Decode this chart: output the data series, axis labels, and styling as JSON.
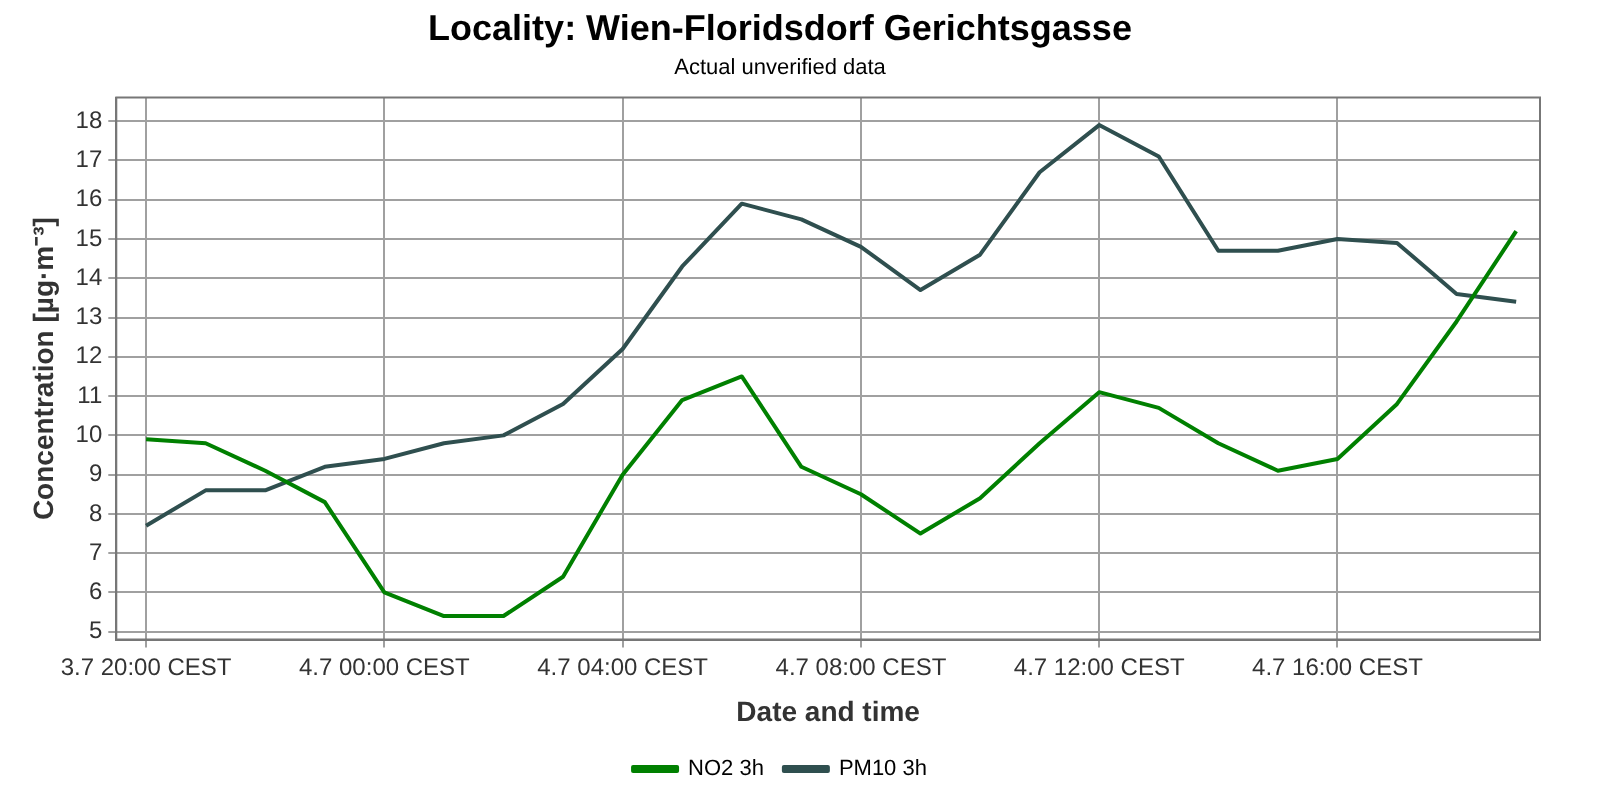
{
  "chart_data": {
    "type": "line",
    "title": "Locality: Wien-Floridsdorf Gerichtsgasse",
    "subtitle": "Actual unverified data",
    "xlabel": "Date and time",
    "ylabel": "Concentration [µg·m⁻³]",
    "categories": [
      "3.7 20:00 CEST",
      null,
      null,
      null,
      "4.7 00:00 CEST",
      null,
      null,
      null,
      "4.7 04:00 CEST",
      null,
      null,
      null,
      "4.7 08:00 CEST",
      null,
      null,
      null,
      "4.7 12:00 CEST",
      null,
      null,
      null,
      "4.7 16:00 CEST",
      null,
      null,
      null
    ],
    "series": [
      {
        "name": "NO2 3h",
        "color": "#008000",
        "values": [
          9.9,
          9.8,
          9.1,
          8.3,
          6.0,
          5.4,
          5.4,
          6.4,
          9.0,
          10.9,
          11.5,
          9.2,
          8.5,
          7.5,
          8.4,
          9.8,
          11.1,
          10.7,
          9.8,
          9.1,
          9.4,
          10.8,
          12.9,
          15.2
        ]
      },
      {
        "name": "PM10 3h",
        "color": "#2f4f4f",
        "values": [
          7.7,
          8.6,
          8.6,
          9.2,
          9.4,
          9.8,
          10.0,
          10.8,
          12.2,
          14.3,
          15.9,
          15.5,
          14.8,
          13.7,
          14.6,
          16.7,
          17.9,
          17.1,
          14.7,
          14.7,
          15.0,
          14.9,
          13.6,
          13.4
        ]
      }
    ],
    "ylim": [
      4.8,
      18.6
    ],
    "yticks": [
      5,
      6,
      7,
      8,
      9,
      10,
      11,
      12,
      13,
      14,
      15,
      16,
      17,
      18
    ],
    "grid": true,
    "legend": "bottom",
    "marker": "none",
    "line_style": "solid"
  }
}
